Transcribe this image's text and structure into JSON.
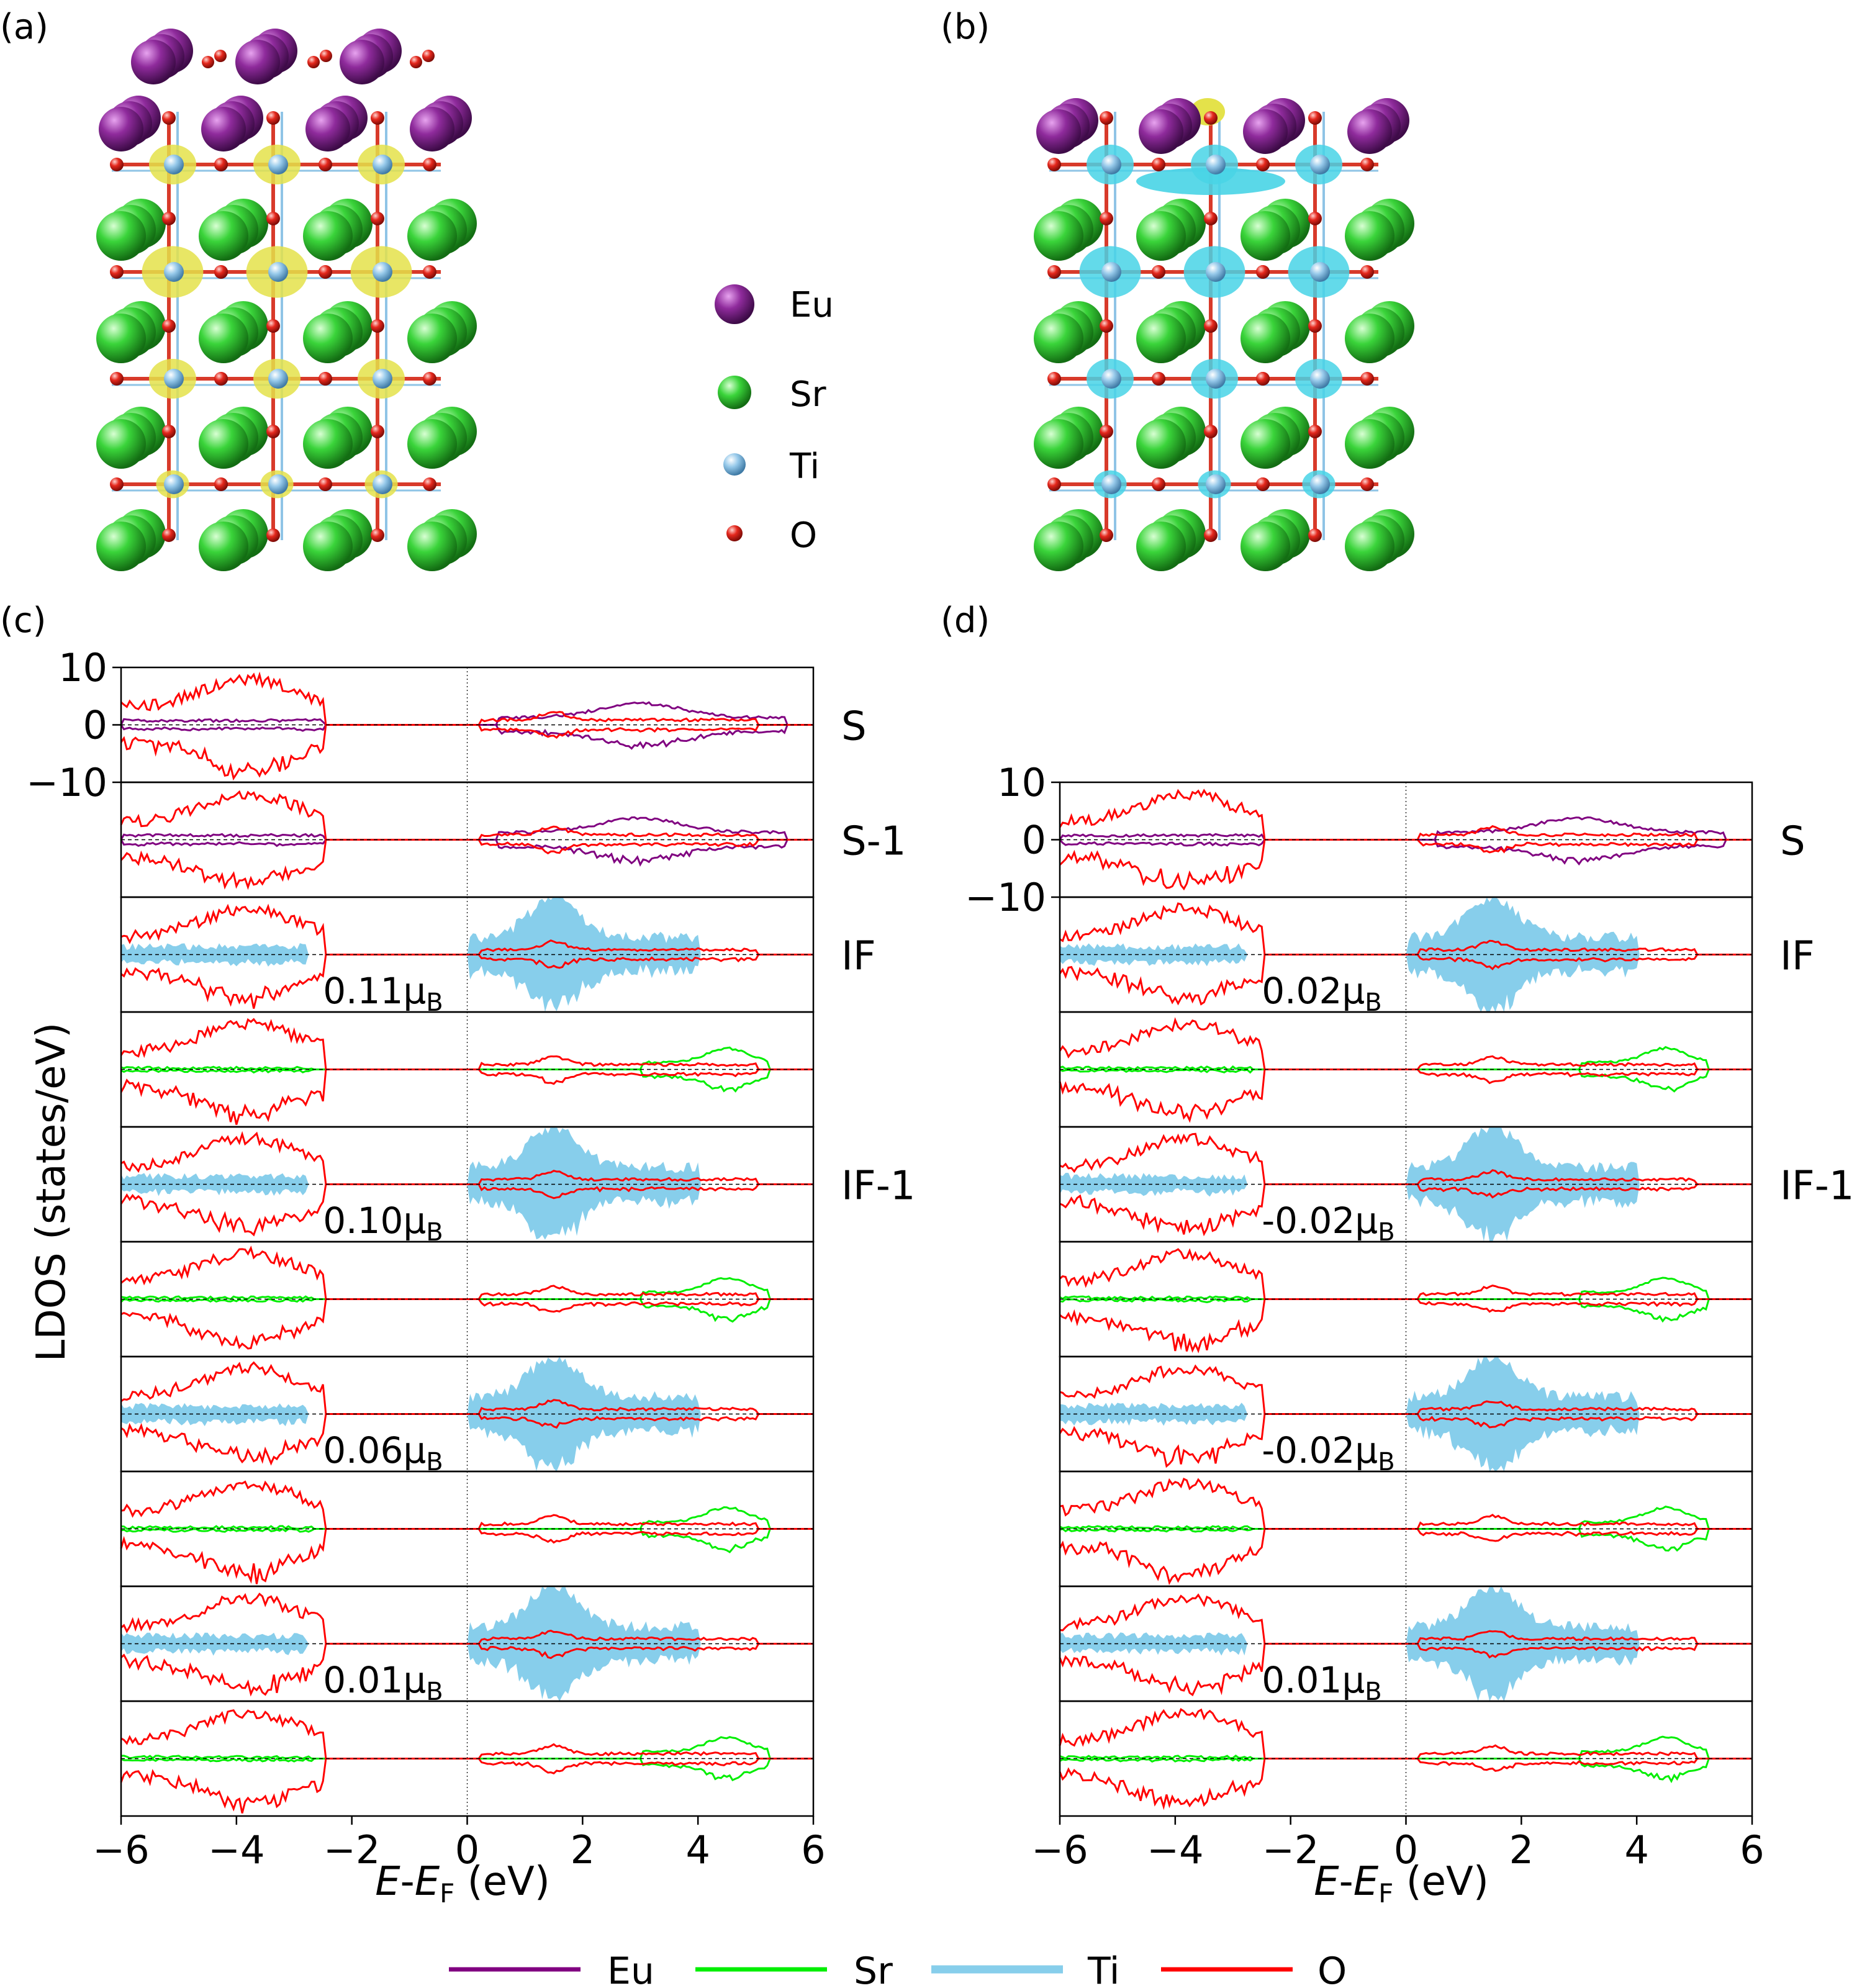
{
  "panel_labels": {
    "a": "(a)",
    "b": "(b)",
    "c": "(c)",
    "d": "(d)"
  },
  "structure_legend": {
    "items": [
      {
        "label": "Eu",
        "color": "#7b1f86",
        "size": "large"
      },
      {
        "label": "Sr",
        "color": "#2fd42f",
        "size": "medium"
      },
      {
        "label": "Ti",
        "color": "#8fc4e6",
        "size": "small"
      },
      {
        "label": "O",
        "color": "#e0241b",
        "size": "tiny"
      }
    ]
  },
  "colors": {
    "Eu": "#800080",
    "Sr": "#00ee00",
    "Ti": "#87ceeb",
    "O": "#ff0000",
    "isosurface_yellow": "#e8e84a",
    "isosurface_cyan": "#4dd8e8"
  },
  "dos_legend": [
    {
      "label": "Eu",
      "color": "#800080"
    },
    {
      "label": "Sr",
      "color": "#00ee00"
    },
    {
      "label": "Ti",
      "color": "#87ceeb"
    },
    {
      "label": "O",
      "color": "#ff0000"
    }
  ],
  "y_axis_label": "LDOS (states/eV)",
  "x_axis_label": {
    "prefix": "E",
    "dash": "-",
    "mid": "E",
    "sub": "F",
    "suffix": " (eV)"
  },
  "chart_data": [
    {
      "type": "area",
      "panel": "(c)",
      "xlim": [
        -6,
        6
      ],
      "xticks": [
        -6,
        -4,
        -2,
        0,
        2,
        4,
        6
      ],
      "xtick_labels": [
        "−6",
        "−4",
        "−2",
        "0",
        "2",
        "4",
        "6"
      ],
      "ylim": [
        -10,
        10
      ],
      "yticks": [
        10,
        0,
        -10
      ],
      "ytick_labels": [
        "10",
        "0",
        "−10"
      ],
      "rows": [
        {
          "label": "S",
          "species": [
            "Eu",
            "O"
          ],
          "moment": ""
        },
        {
          "label": "S-1",
          "species": [
            "Eu",
            "O"
          ],
          "moment": ""
        },
        {
          "label": "IF",
          "species": [
            "Ti",
            "O"
          ],
          "moment": "0.11μ",
          "moment_sub": "B"
        },
        {
          "label": "",
          "species": [
            "Sr",
            "O"
          ],
          "moment": ""
        },
        {
          "label": "IF-1",
          "species": [
            "Ti",
            "O"
          ],
          "moment": "0.10μ",
          "moment_sub": "B"
        },
        {
          "label": "",
          "species": [
            "Sr",
            "O"
          ],
          "moment": ""
        },
        {
          "label": "",
          "species": [
            "Ti",
            "O"
          ],
          "moment": "0.06μ",
          "moment_sub": "B"
        },
        {
          "label": "",
          "species": [
            "Sr",
            "O"
          ],
          "moment": ""
        },
        {
          "label": "",
          "species": [
            "Ti",
            "O"
          ],
          "moment": "0.01μ",
          "moment_sub": "B"
        },
        {
          "label": "",
          "species": [
            "Sr",
            "O"
          ],
          "moment": ""
        }
      ]
    },
    {
      "type": "area",
      "panel": "(d)",
      "xlim": [
        -6,
        6
      ],
      "xticks": [
        -6,
        -4,
        -2,
        0,
        2,
        4,
        6
      ],
      "xtick_labels": [
        "−6",
        "−4",
        "−2",
        "0",
        "2",
        "4",
        "6"
      ],
      "ylim": [
        -10,
        10
      ],
      "yticks": [
        10,
        0,
        -10
      ],
      "ytick_labels": [
        "10",
        "0",
        "−10"
      ],
      "rows": [
        {
          "label": "S",
          "species": [
            "Eu",
            "O"
          ],
          "moment": ""
        },
        {
          "label": "IF",
          "species": [
            "Ti",
            "O"
          ],
          "moment": "0.02μ",
          "moment_sub": "B"
        },
        {
          "label": "",
          "species": [
            "Sr",
            "O"
          ],
          "moment": ""
        },
        {
          "label": "IF-1",
          "species": [
            "Ti",
            "O"
          ],
          "moment": "-0.02μ",
          "moment_sub": "B"
        },
        {
          "label": "",
          "species": [
            "Sr",
            "O"
          ],
          "moment": ""
        },
        {
          "label": "",
          "species": [
            "Ti",
            "O"
          ],
          "moment": "-0.02μ",
          "moment_sub": "B"
        },
        {
          "label": "",
          "species": [
            "Sr",
            "O"
          ],
          "moment": ""
        },
        {
          "label": "",
          "species": [
            "Ti",
            "O"
          ],
          "moment": "0.01μ",
          "moment_sub": "B"
        },
        {
          "label": "",
          "species": [
            "Sr",
            "O"
          ],
          "moment": ""
        }
      ]
    }
  ]
}
